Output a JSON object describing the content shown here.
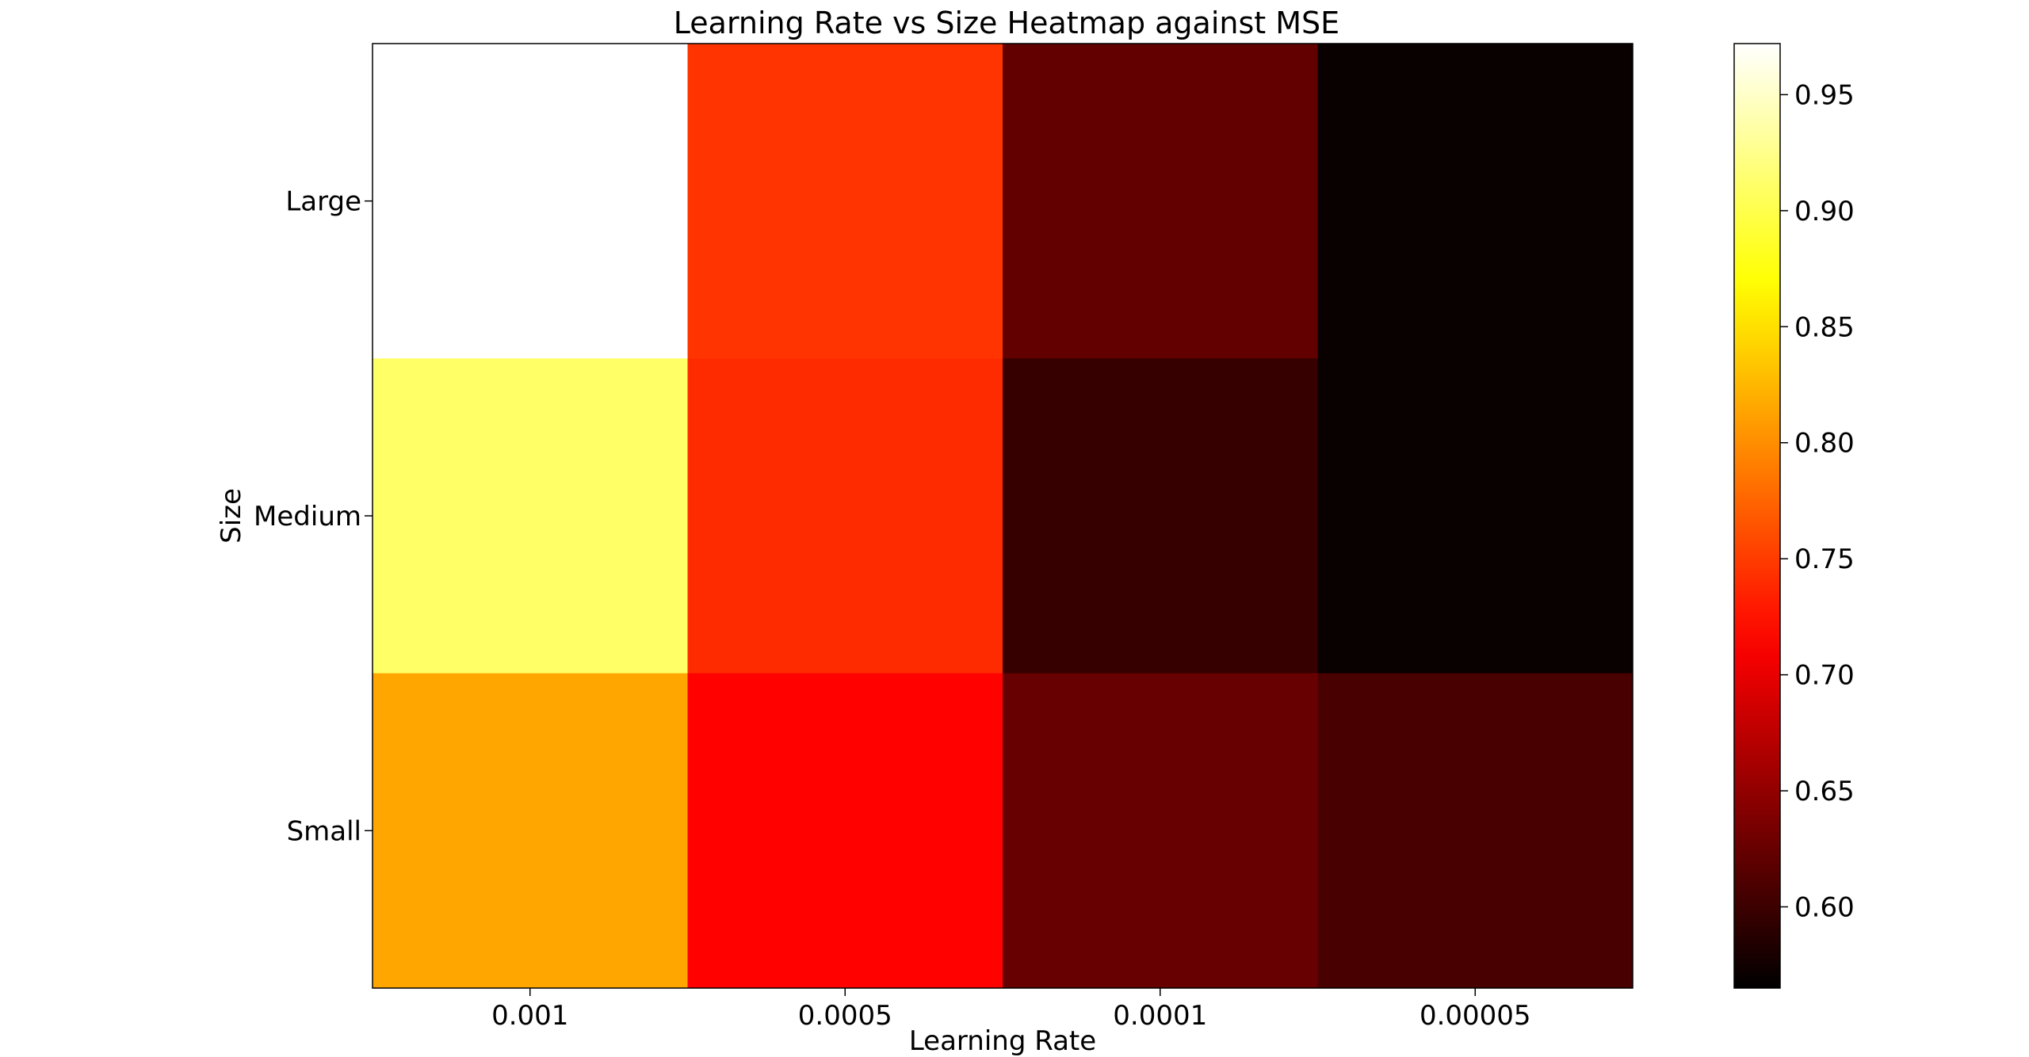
{
  "chart_data": {
    "type": "heatmap",
    "title": "Learning Rate vs Size Heatmap against MSE",
    "xlabel": "Learning Rate",
    "ylabel": "Size",
    "x_categories": [
      "0.001",
      "0.0005",
      "0.0001",
      "0.00005"
    ],
    "y_categories": [
      "Large",
      "Medium",
      "Small"
    ],
    "values": [
      [
        0.972,
        0.745,
        0.622,
        0.57
      ],
      [
        0.91,
        0.74,
        0.597,
        0.57
      ],
      [
        0.815,
        0.715,
        0.625,
        0.607
      ]
    ],
    "colormap": "hot",
    "colorbar": {
      "range": [
        0.565,
        0.972
      ],
      "ticks": [
        0.6,
        0.65,
        0.7,
        0.75,
        0.8,
        0.85,
        0.9,
        0.95
      ],
      "tick_labels": [
        "0.60",
        "0.65",
        "0.70",
        "0.75",
        "0.80",
        "0.85",
        "0.90",
        "0.95"
      ]
    },
    "grid": false
  }
}
